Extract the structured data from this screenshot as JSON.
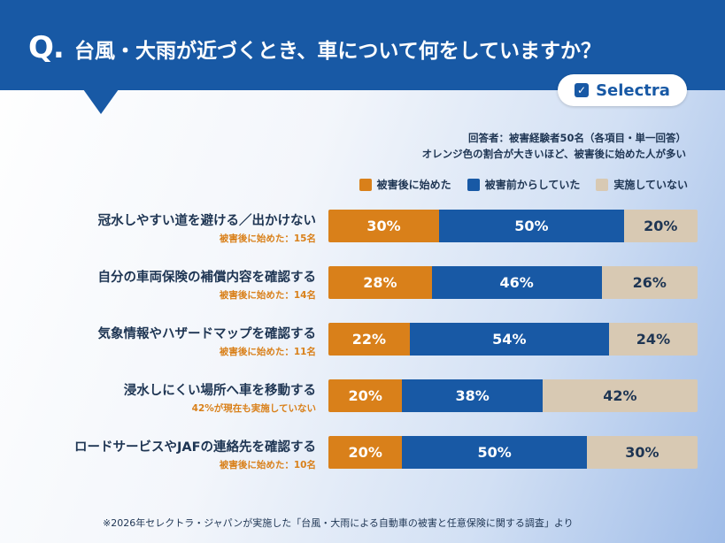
{
  "header": {
    "q_mark": "Q.",
    "title": "台風・大雨が近づくとき、車について何をしていますか？"
  },
  "brand": {
    "check_icon": "check-icon",
    "name": "Selectra"
  },
  "meta": {
    "respondents": "回答者：被害経験者50名（各項目・単一回答）",
    "note": "オレンジ色の割合が大きいほど、被害後に始めた人が多い"
  },
  "footnote": "※2026年セレクトラ・ジャパンが実施した「台風・大雨による自動車の被害と任意保険に関する調査」より",
  "colors": {
    "after": "#d9801a",
    "before": "#1859a5",
    "not": "#d8c9b3",
    "header": "#1859a5"
  },
  "chart_data": {
    "type": "bar",
    "orientation": "horizontal-stacked-100",
    "legend_position": "top-right",
    "series": [
      {
        "name": "被害後に始めた",
        "color": "#d9801a",
        "values": [
          30,
          28,
          22,
          20,
          20
        ]
      },
      {
        "name": "被害前からしていた",
        "color": "#1859a5",
        "values": [
          50,
          46,
          54,
          38,
          50
        ]
      },
      {
        "name": "実施していない",
        "color": "#d8c9b3",
        "values": [
          20,
          26,
          24,
          42,
          30
        ]
      }
    ],
    "categories": [
      "冠水しやすい道を避ける／出かけない",
      "自分の車両保険の補償内容を確認する",
      "気象情報やハザードマップを確認する",
      "浸水しにくい場所へ車を移動する",
      "ロードサービスやJAFの連絡先を確認する"
    ],
    "sublabels": [
      "被害後に始めた：15名",
      "被害後に始めた：14名",
      "被害後に始めた：11名",
      "42%が現在も実施していない",
      "被害後に始めた：10名"
    ],
    "value_suffix": "%",
    "xlim": [
      0,
      100
    ]
  }
}
